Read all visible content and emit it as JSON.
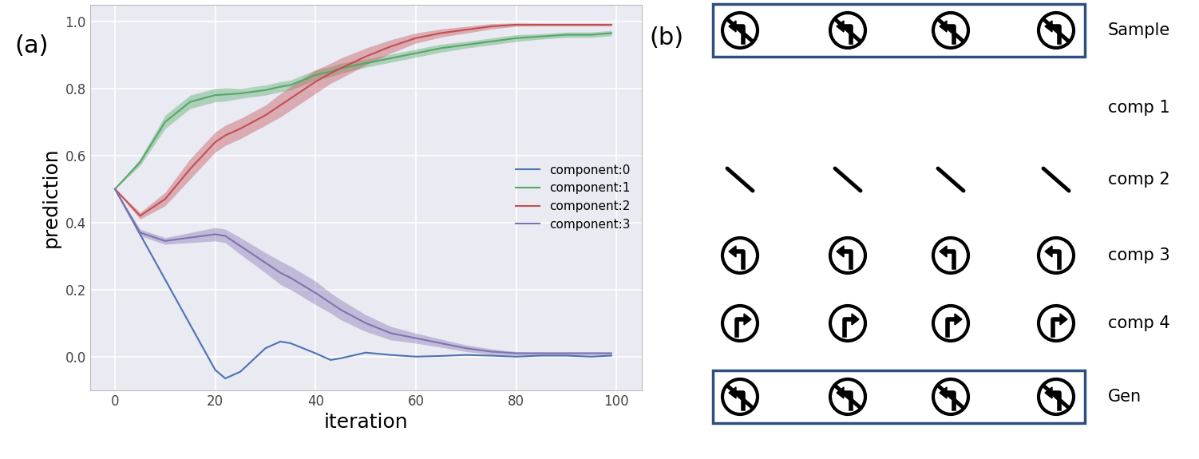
{
  "chart_data": {
    "type": "line",
    "panel_label": "(a)",
    "x_label": "iteration",
    "y_label": "prediction",
    "x": [
      0,
      5,
      10,
      15,
      20,
      22,
      25,
      30,
      33,
      35,
      40,
      43,
      45,
      50,
      55,
      60,
      65,
      70,
      75,
      80,
      85,
      90,
      95,
      99
    ],
    "series": [
      {
        "name": "component:0",
        "color": "#4c72b0",
        "values": [
          0.5,
          0.365,
          0.23,
          0.095,
          -0.04,
          -0.065,
          -0.045,
          0.025,
          0.045,
          0.04,
          0.01,
          -0.01,
          -0.005,
          0.012,
          0.005,
          0.0,
          0.002,
          0.005,
          0.003,
          0.0,
          0.003,
          0.003,
          0.0,
          0.003
        ],
        "spread": [
          0,
          0,
          0,
          0,
          0,
          0,
          0,
          0,
          0,
          0,
          0,
          0,
          0,
          0,
          0,
          0,
          0,
          0,
          0,
          0,
          0,
          0,
          0,
          0
        ]
      },
      {
        "name": "component:1",
        "color": "#55a868",
        "values": [
          0.5,
          0.58,
          0.7,
          0.76,
          0.78,
          0.782,
          0.785,
          0.795,
          0.805,
          0.81,
          0.84,
          0.85,
          0.86,
          0.875,
          0.89,
          0.905,
          0.92,
          0.93,
          0.94,
          0.95,
          0.955,
          0.96,
          0.96,
          0.965
        ],
        "spread": [
          0,
          0.01,
          0.02,
          0.02,
          0.02,
          0.02,
          0.015,
          0.015,
          0.015,
          0.015,
          0.015,
          0.015,
          0.015,
          0.012,
          0.012,
          0.012,
          0.012,
          0.01,
          0.01,
          0.01,
          0.008,
          0.008,
          0.008,
          0.008
        ]
      },
      {
        "name": "component:2",
        "color": "#c44e52",
        "values": [
          0.5,
          0.42,
          0.47,
          0.56,
          0.64,
          0.66,
          0.68,
          0.72,
          0.75,
          0.77,
          0.82,
          0.845,
          0.86,
          0.895,
          0.925,
          0.95,
          0.965,
          0.975,
          0.985,
          0.99,
          0.99,
          0.99,
          0.99,
          0.99
        ],
        "spread": [
          0,
          0.01,
          0.02,
          0.03,
          0.03,
          0.03,
          0.03,
          0.03,
          0.035,
          0.035,
          0.035,
          0.03,
          0.03,
          0.025,
          0.02,
          0.015,
          0.012,
          0.01,
          0.008,
          0.005,
          0.004,
          0.004,
          0.004,
          0.004
        ]
      },
      {
        "name": "component:3",
        "color": "#8172b2",
        "values": [
          0.5,
          0.37,
          0.345,
          0.355,
          0.365,
          0.36,
          0.33,
          0.28,
          0.25,
          0.235,
          0.19,
          0.16,
          0.14,
          0.1,
          0.07,
          0.055,
          0.04,
          0.025,
          0.015,
          0.01,
          0.01,
          0.01,
          0.01,
          0.01
        ],
        "spread": [
          0,
          0.01,
          0.01,
          0.015,
          0.02,
          0.02,
          0.025,
          0.03,
          0.035,
          0.035,
          0.035,
          0.03,
          0.03,
          0.025,
          0.02,
          0.015,
          0.012,
          0.01,
          0.008,
          0.005,
          0.004,
          0.004,
          0.004,
          0.004
        ]
      }
    ],
    "xlim": [
      -5,
      105
    ],
    "xticks": [
      0,
      20,
      40,
      60,
      80,
      100
    ],
    "ylim": [
      -0.1,
      1.05
    ],
    "yticks": [
      {
        "value": 0.0,
        "label": "0.0"
      },
      {
        "value": 0.2,
        "label": "0.2"
      },
      {
        "value": 0.4,
        "label": "0.4"
      },
      {
        "value": 0.6,
        "label": "0.6"
      },
      {
        "value": 0.8,
        "label": "0.8"
      },
      {
        "value": 1.0,
        "label": "1.0"
      }
    ],
    "grid": true,
    "legend": "center right"
  },
  "image_grid": {
    "panel_label": "(b)",
    "rows": [
      "Sample",
      "comp 1",
      "comp 2",
      "comp 3",
      "comp 4",
      "Gen"
    ]
  }
}
